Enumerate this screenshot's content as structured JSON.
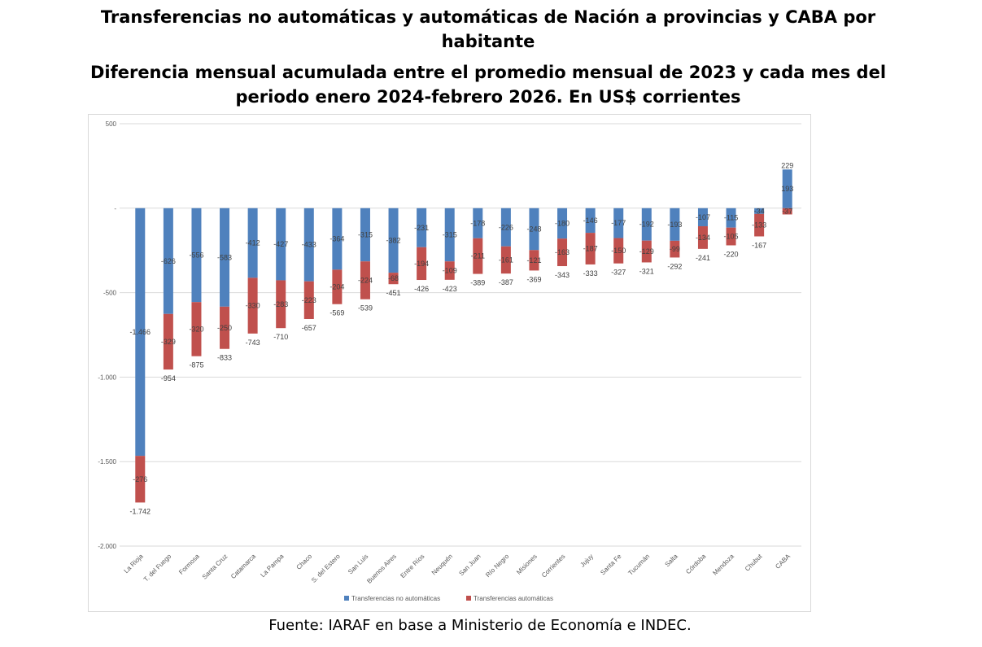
{
  "title_line1": "Transferencias no automáticas y automáticas de Nación a provincias y CABA por habitante",
  "title_line2": "Diferencia mensual acumulada entre el promedio mensual de 2023 y cada mes del periodo enero 2024-febrero 2026.  En US$ corrientes",
  "source": "Fuente: IARAF en base a Ministerio de Economía e INDEC.",
  "chart_data": {
    "type": "bar",
    "stacked": true,
    "title": "Transferencias no automáticas y automáticas de Nación a provincias y CABA por habitante. Diferencia mensual acumulada entre el promedio mensual de 2023 y cada mes del periodo enero 2024-febrero 2026. En US$ corrientes",
    "xlabel": "",
    "ylabel": "",
    "ylim": [
      -2000,
      500
    ],
    "yticks": [
      500,
      0,
      -500,
      -1000,
      -1500,
      -2000
    ],
    "ytick_labels": [
      "500",
      "-",
      "-500",
      "-1.000",
      "-1.500",
      "-2.000"
    ],
    "grid": true,
    "legend_position": "bottom",
    "categories": [
      "La Rioja",
      "T. del Fuego",
      "Formosa",
      "Santa Cruz",
      "Catamarca",
      "La Pampa",
      "Chaco",
      "S. del Estero",
      "San Luis",
      "Buenos Aires",
      "Entre Ríos",
      "Neuquén",
      "San Juan",
      "Río Negro",
      "Misiones",
      "Corrientes",
      "Jujuy",
      "Santa Fe",
      "Tucumán",
      "Salta",
      "Córdoba",
      "Mendoza",
      "Chubut",
      "CABA"
    ],
    "series": [
      {
        "name": "Transferencias no automáticas",
        "color": "#4f81bd",
        "values": [
          -1466,
          -626,
          -556,
          -583,
          -412,
          -427,
          -433,
          -364,
          -315,
          -382,
          -231,
          -315,
          -178,
          -226,
          -248,
          -180,
          -146,
          -177,
          -192,
          -193,
          -107,
          -115,
          -34,
          229
        ]
      },
      {
        "name": "Transferencias automáticas",
        "color": "#c0504d",
        "values": [
          -276,
          -329,
          -320,
          -250,
          -330,
          -283,
          -223,
          -204,
          -224,
          -68,
          -194,
          -109,
          -211,
          -161,
          -121,
          -163,
          -187,
          -150,
          -129,
          -99,
          -134,
          -105,
          -133,
          -37
        ]
      }
    ],
    "totals": [
      -1742,
      -954,
      -875,
      -833,
      -743,
      -710,
      -657,
      -569,
      -539,
      -451,
      -426,
      -423,
      -389,
      -387,
      -369,
      -343,
      -333,
      -327,
      -321,
      -292,
      -241,
      -220,
      -167,
      193
    ],
    "total_labels": [
      "-1.742",
      "-954",
      "-875",
      "-833",
      "-743",
      "-710",
      "-657",
      "-569",
      "-539",
      "-451",
      "-426",
      "-423",
      "-389",
      "-387",
      "-369",
      "-343",
      "-333",
      "-327",
      "-321",
      "-292",
      "-241",
      "-220",
      "-167",
      "193"
    ],
    "series_labels": [
      [
        "-1.466",
        "-626",
        "-556",
        "-583",
        "-412",
        "-427",
        "-433",
        "-364",
        "-315",
        "-382",
        "-231",
        "-315",
        "-178",
        "-226",
        "-248",
        "-180",
        "-146",
        "-177",
        "-192",
        "-193",
        "-107",
        "-115",
        "-34",
        "229"
      ],
      [
        "-276",
        "-329",
        "-320",
        "-250",
        "-330",
        "-283",
        "-223",
        "-204",
        "-224",
        "-68",
        "-194",
        "-109",
        "-211",
        "-161",
        "-121",
        "-163",
        "-187",
        "-150",
        "-129",
        "-99",
        "-134",
        "-105",
        "-133",
        "-37"
      ]
    ]
  }
}
